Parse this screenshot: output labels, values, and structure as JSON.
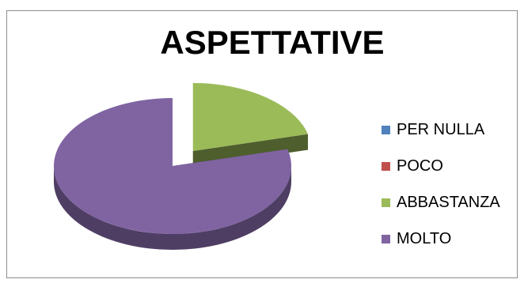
{
  "chart_data": {
    "type": "pie",
    "title": "ASPETTATIVE",
    "categories": [
      "PER NULLA",
      "POCO",
      "ABBASTANZA",
      "MOLTO"
    ],
    "values": [
      0,
      0,
      21,
      79
    ],
    "colors": [
      "#4f81bd",
      "#c0504d",
      "#9bbb59",
      "#8064a2"
    ],
    "exploded": "ABBASTANZA",
    "three_d": true,
    "legend": "right"
  }
}
